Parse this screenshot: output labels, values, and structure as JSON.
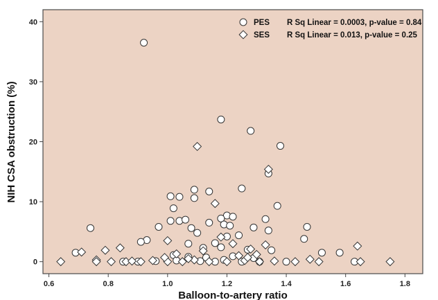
{
  "chart_data": {
    "type": "scatter",
    "xlabel": "Balloon-to-artery ratio",
    "ylabel": "NIH CSA obstruction (%)",
    "xlim": [
      0.58,
      1.86
    ],
    "ylim": [
      -2,
      42
    ],
    "x_ticks": [
      "0.6",
      "0.8",
      "1.0",
      "1.2",
      "1.4",
      "1.6",
      "1.8"
    ],
    "y_ticks": [
      "0",
      "10",
      "20",
      "30",
      "40"
    ],
    "colors": {
      "plot_background": "#ecd3c4",
      "marker_fill": "#ffffff",
      "marker_stroke": "#333333"
    },
    "legend_position": "top-right",
    "series": [
      {
        "name": "PES",
        "marker": "circle",
        "stat": "R Sq Linear = 0.0003, p-value = 0.84",
        "points": [
          [
            0.92,
            36.5
          ],
          [
            1.18,
            23.7
          ],
          [
            1.28,
            21.8
          ],
          [
            1.38,
            19.3
          ],
          [
            1.34,
            14.7
          ],
          [
            1.25,
            12.2
          ],
          [
            1.09,
            12.0
          ],
          [
            1.14,
            11.7
          ],
          [
            1.01,
            10.9
          ],
          [
            1.04,
            10.8
          ],
          [
            1.09,
            10.6
          ],
          [
            1.37,
            9.3
          ],
          [
            1.02,
            8.9
          ],
          [
            1.2,
            7.7
          ],
          [
            1.18,
            7.2
          ],
          [
            1.22,
            7.5
          ],
          [
            1.33,
            7.1
          ],
          [
            1.04,
            6.8
          ],
          [
            1.01,
            6.8
          ],
          [
            1.06,
            7.0
          ],
          [
            1.14,
            6.5
          ],
          [
            1.19,
            6.2
          ],
          [
            1.21,
            6.0
          ],
          [
            1.08,
            5.6
          ],
          [
            0.74,
            5.6
          ],
          [
            0.97,
            5.8
          ],
          [
            1.29,
            5.7
          ],
          [
            1.47,
            5.8
          ],
          [
            1.1,
            4.8
          ],
          [
            1.2,
            4.2
          ],
          [
            1.24,
            4.4
          ],
          [
            1.34,
            5.2
          ],
          [
            1.46,
            3.8
          ],
          [
            0.93,
            3.6
          ],
          [
            1.16,
            3.1
          ],
          [
            1.07,
            3.0
          ],
          [
            0.91,
            3.3
          ],
          [
            1.12,
            2.3
          ],
          [
            1.18,
            2.4
          ],
          [
            1.27,
            2.0
          ],
          [
            1.35,
            1.9
          ],
          [
            1.52,
            1.5
          ],
          [
            1.58,
            1.5
          ],
          [
            0.69,
            1.5
          ],
          [
            1.02,
            1.1
          ],
          [
            1.07,
            0.8
          ],
          [
            1.13,
            0.7
          ],
          [
            1.22,
            0.9
          ],
          [
            1.29,
            0.6
          ],
          [
            1.4,
            0.0
          ],
          [
            1.63,
            0.0
          ],
          [
            1.03,
            0.2
          ],
          [
            1.11,
            0.1
          ],
          [
            1.19,
            0.3
          ],
          [
            1.25,
            0.0
          ],
          [
            0.96,
            0.1
          ],
          [
            0.85,
            0.0
          ],
          [
            0.9,
            0.0
          ],
          [
            1.31,
            0.0
          ],
          [
            1.16,
            0.0
          ]
        ]
      },
      {
        "name": "SES",
        "marker": "diamond",
        "stat": "R Sq Linear = 0.013, p-value = 0.25",
        "points": [
          [
            1.1,
            19.2
          ],
          [
            1.34,
            15.4
          ],
          [
            1.16,
            9.7
          ],
          [
            1.33,
            2.8
          ],
          [
            1.22,
            3.0
          ],
          [
            1.0,
            3.5
          ],
          [
            1.64,
            2.6
          ],
          [
            0.79,
            1.9
          ],
          [
            0.71,
            1.6
          ],
          [
            0.84,
            2.3
          ],
          [
            1.28,
            2.1
          ],
          [
            1.12,
            1.8
          ],
          [
            1.3,
            1.2
          ],
          [
            1.24,
            1.0
          ],
          [
            0.64,
            0.0
          ],
          [
            0.76,
            0.3
          ],
          [
            0.76,
            0.0
          ],
          [
            0.81,
            0.0
          ],
          [
            0.86,
            0.0
          ],
          [
            0.88,
            0.1
          ],
          [
            0.91,
            0.0
          ],
          [
            0.95,
            0.2
          ],
          [
            1.0,
            0.0
          ],
          [
            1.05,
            0.0
          ],
          [
            1.09,
            0.3
          ],
          [
            1.14,
            0.0
          ],
          [
            1.2,
            0.0
          ],
          [
            1.26,
            0.2
          ],
          [
            1.31,
            0.0
          ],
          [
            1.36,
            0.1
          ],
          [
            1.43,
            0.0
          ],
          [
            1.48,
            0.4
          ],
          [
            1.51,
            0.0
          ],
          [
            1.65,
            0.0
          ],
          [
            1.75,
            0.0
          ],
          [
            1.03,
            1.3
          ],
          [
            1.18,
            4.1
          ],
          [
            1.27,
            0.7
          ],
          [
            0.99,
            0.7
          ],
          [
            1.07,
            0.5
          ]
        ]
      }
    ]
  }
}
